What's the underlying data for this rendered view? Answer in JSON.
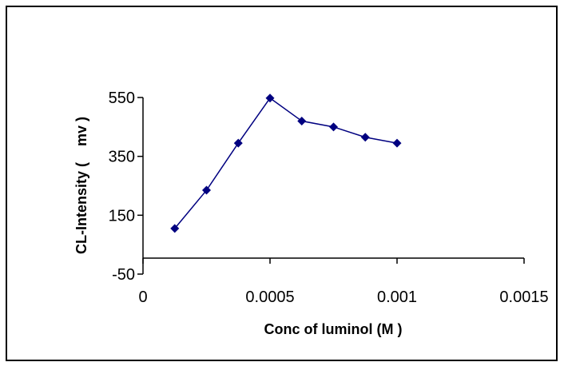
{
  "chart_data": {
    "type": "line",
    "title": "",
    "xlabel": "Conc of luminol (M )",
    "ylabel": "CL-Intensity (    mv )",
    "xlim": [
      0,
      0.0015
    ],
    "ylim": [
      -50,
      550
    ],
    "xticks": [
      0,
      0.0005,
      0.001,
      0.0015
    ],
    "xtick_labels": [
      "0",
      "0.0005",
      "0.001",
      "0.0015"
    ],
    "yticks": [
      -50,
      150,
      350,
      550
    ],
    "ytick_labels": [
      "-50",
      "150",
      "350",
      "550"
    ],
    "grid": false,
    "legend": "none",
    "marker": "diamond",
    "color": "#000080",
    "series": [
      {
        "x": [
          0.000125,
          0.00025,
          0.000375,
          0.0005,
          0.000625,
          0.00075,
          0.000875,
          0.001
        ],
        "y": [
          105,
          235,
          395,
          548,
          470,
          450,
          415,
          395
        ]
      }
    ]
  }
}
